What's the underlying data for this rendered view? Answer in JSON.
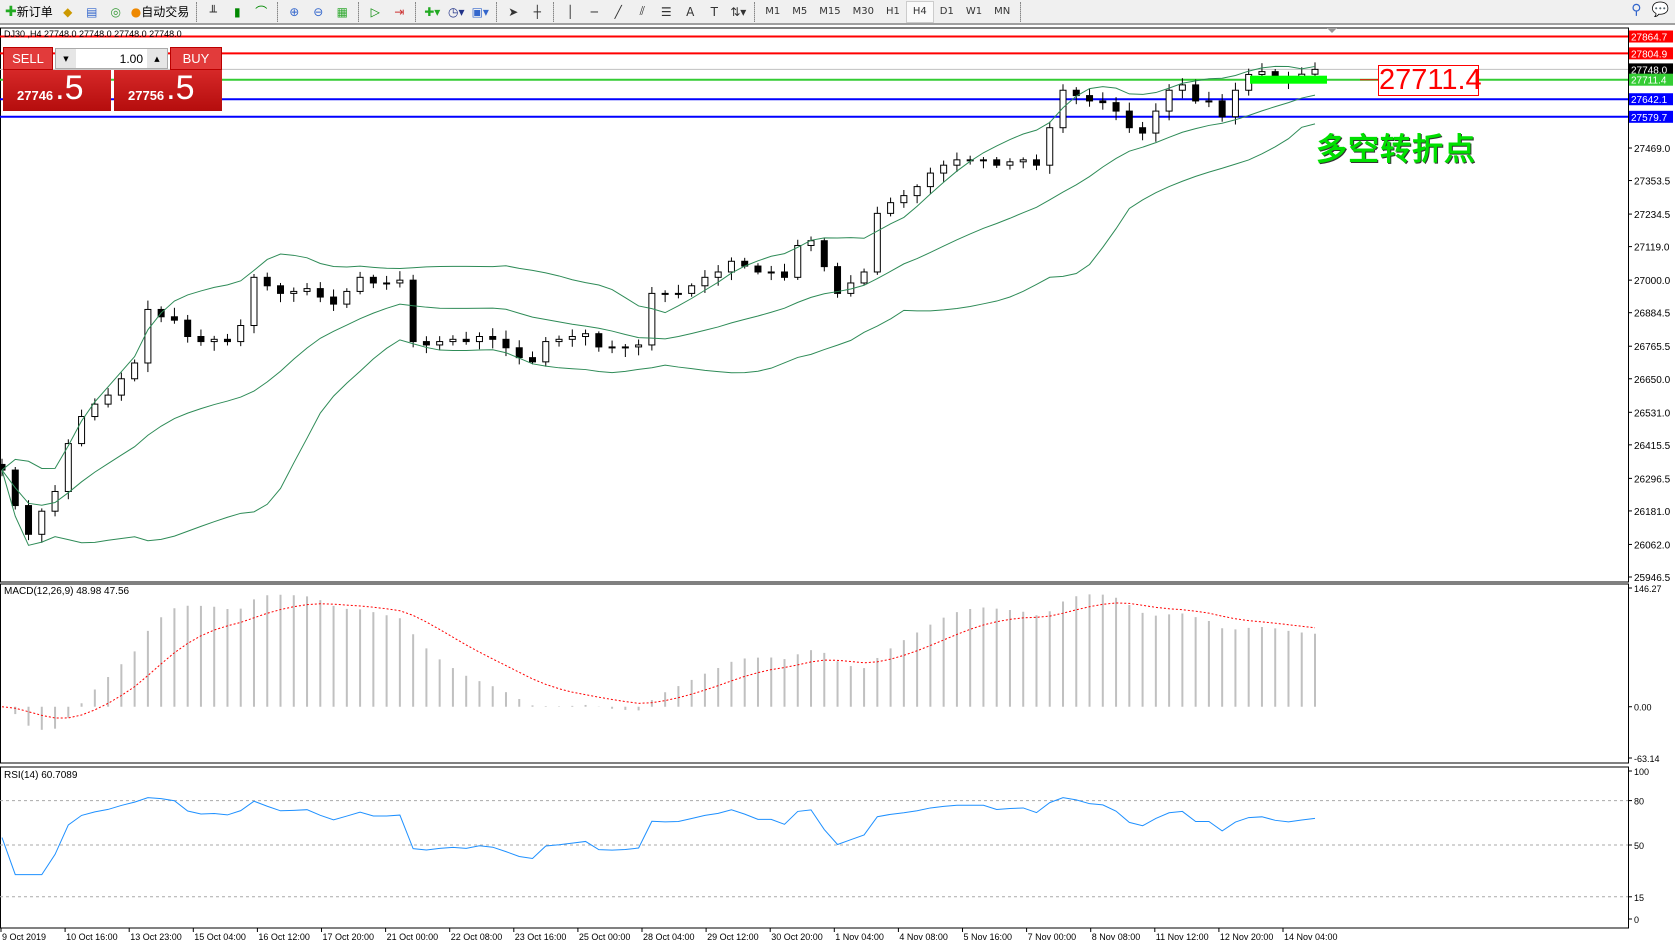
{
  "toolbar": {
    "new_order": "新订单",
    "auto_trading": "自动交易",
    "icons": [
      "new-order-icon",
      "market-watch-icon",
      "navigator-icon",
      "signals-icon",
      "auto-trading-icon",
      "bar-chart-icon",
      "candlestick-icon",
      "line-chart-icon",
      "zoom-in-icon",
      "zoom-out-icon",
      "tile-icon",
      "autoscroll-icon",
      "chart-shift-icon",
      "indicators-icon",
      "periods-icon",
      "templates-icon",
      "cursor-icon",
      "crosshair-icon",
      "vertical-line-icon",
      "horizontal-line-icon",
      "trendline-icon",
      "fibo-fan-icon",
      "fibo-retracement-icon",
      "text-icon",
      "text-label-icon",
      "arrows-icon"
    ],
    "timeframes": [
      "M1",
      "M5",
      "M15",
      "M30",
      "H1",
      "H4",
      "D1",
      "W1",
      "MN"
    ],
    "active_timeframe": "H4"
  },
  "chart": {
    "ohlc_label": "DJ30 ,H4  27748.0 27748.0 27748.0 27748.0",
    "symbol": "DJ30",
    "timeframe": "H4",
    "trade_panel": {
      "sell_label": "SELL",
      "buy_label": "BUY",
      "lot": "1.00",
      "sell_main": "27746",
      "sell_frac": ".5",
      "buy_main": "27756",
      "buy_frac": ".5"
    },
    "price_ticks": [
      "27469.0",
      "27353.5",
      "27234.5",
      "27119.0",
      "27000.0",
      "26884.5",
      "26765.5",
      "26650.0",
      "26531.0",
      "26415.5",
      "26296.5",
      "26181.0",
      "26062.0",
      "25946.5"
    ],
    "price_range": [
      25946.5,
      27469.0
    ],
    "hlines": [
      {
        "price": 27864.7,
        "label": "27864.7",
        "color": "#ff0000"
      },
      {
        "price": 27804.9,
        "label": "27804.9",
        "color": "#ff0000"
      },
      {
        "price": 27748.0,
        "label": "27748.0",
        "color": "#000000"
      },
      {
        "price": 27711.4,
        "label": "27711.4",
        "color": "#33cc33"
      },
      {
        "price": 27642.1,
        "label": "27642.1",
        "color": "#0000ff"
      },
      {
        "price": 27579.7,
        "label": "27579.7",
        "color": "#0000ff"
      }
    ],
    "annotation_value": "27711.4",
    "annotation_text": "多空转折点",
    "closes": [
      26326,
      26200,
      26098,
      26180,
      26250,
      26420,
      26516,
      26560,
      26592,
      26650,
      26706,
      26896,
      26870,
      26858,
      26800,
      26782,
      26790,
      26782,
      26839,
      27010,
      26980,
      26953,
      26960,
      26970,
      26940,
      26915,
      26960,
      27010,
      26990,
      26990,
      27000,
      26782,
      26770,
      26782,
      26790,
      26782,
      26800,
      26790,
      26760,
      26725,
      26710,
      26782,
      26790,
      26800,
      26810,
      26763,
      26760,
      26763,
      26770,
      26953,
      26950,
      26953,
      26980,
      27010,
      27029,
      27067,
      27050,
      27029,
      27029,
      27010,
      27123,
      27140,
      27048,
      26953,
      26990,
      27029,
      27237,
      27275,
      27300,
      27332,
      27380,
      27408,
      27427,
      27427,
      27427,
      27408,
      27420,
      27427,
      27408,
      27541,
      27674,
      27655,
      27636,
      27630,
      27600,
      27541,
      27522,
      27600,
      27674,
      27693,
      27636,
      27636,
      27580,
      27674,
      27730,
      27740,
      27720,
      27711,
      27731,
      27748
    ],
    "dates": [
      "9 Oct 2019",
      "10 Oct 16:00",
      "13 Oct 23:00",
      "15 Oct 04:00",
      "16 Oct 12:00",
      "17 Oct 20:00",
      "21 Oct 00:00",
      "22 Oct 08:00",
      "23 Oct 16:00",
      "25 Oct 00:00",
      "28 Oct 04:00",
      "29 Oct 12:00",
      "30 Oct 20:00",
      "1 Nov 04:00",
      "4 Nov 08:00",
      "5 Nov 16:00",
      "7 Nov 00:00",
      "8 Nov 08:00",
      "11 Nov 12:00",
      "12 Nov 20:00",
      "14 Nov 04:00"
    ]
  },
  "macd": {
    "label": "MACD(12,26,9) 48.98 47.56",
    "ticks": [
      "146.27",
      "0.00",
      "-63.14"
    ],
    "range": [
      -63.14,
      146.27
    ],
    "hist_color": "#c0c0c0",
    "signal_color": "#ff0000"
  },
  "rsi": {
    "label": "RSI(14) 60.7089",
    "ticks": [
      "100",
      "80",
      "50",
      "15",
      "0"
    ],
    "levels": [
      80,
      50,
      15
    ],
    "color": "#1e90ff"
  }
}
